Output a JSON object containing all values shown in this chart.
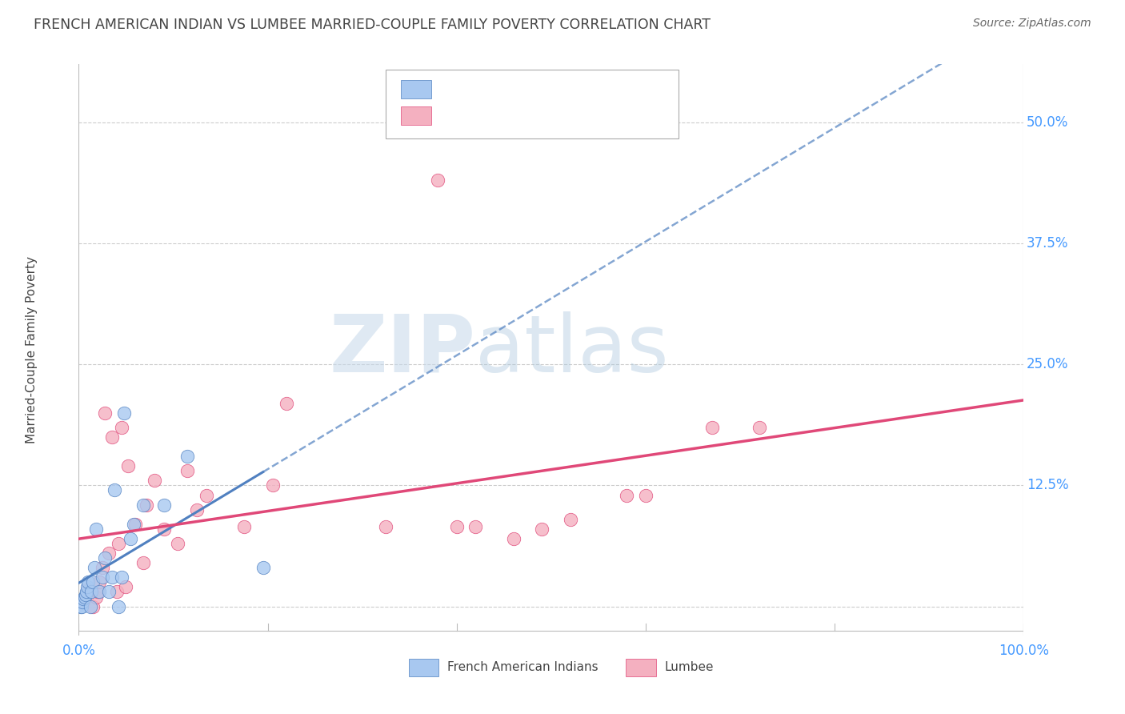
{
  "title": "FRENCH AMERICAN INDIAN VS LUMBEE MARRIED-COUPLE FAMILY POVERTY CORRELATION CHART",
  "source": "Source: ZipAtlas.com",
  "ylabel": "Married-Couple Family Poverty",
  "xlim": [
    0,
    1.0
  ],
  "ylim": [
    -0.03,
    0.56
  ],
  "grid_color": "#cccccc",
  "background_color": "#ffffff",
  "color_blue": "#a8c8f0",
  "color_pink": "#f4b0c0",
  "line_blue": "#5080c0",
  "line_pink": "#e04878",
  "label_color": "#4499ff",
  "text_color": "#444444",
  "french_points_x": [
    0.002,
    0.003,
    0.004,
    0.005,
    0.006,
    0.007,
    0.008,
    0.009,
    0.01,
    0.012,
    0.013,
    0.015,
    0.017,
    0.018,
    0.022,
    0.025,
    0.028,
    0.032,
    0.035,
    0.038,
    0.042,
    0.045,
    0.048,
    0.055,
    0.058,
    0.068,
    0.09,
    0.115,
    0.195
  ],
  "french_points_y": [
    0.0,
    0.0,
    0.005,
    0.008,
    0.01,
    0.012,
    0.015,
    0.02,
    0.025,
    0.0,
    0.015,
    0.025,
    0.04,
    0.08,
    0.015,
    0.03,
    0.05,
    0.015,
    0.03,
    0.12,
    0.0,
    0.03,
    0.2,
    0.07,
    0.085,
    0.105,
    0.105,
    0.155,
    0.04
  ],
  "lumbee_points_x": [
    0.005,
    0.008,
    0.01,
    0.015,
    0.018,
    0.02,
    0.022,
    0.025,
    0.028,
    0.032,
    0.035,
    0.04,
    0.042,
    0.045,
    0.05,
    0.052,
    0.06,
    0.068,
    0.072,
    0.08,
    0.09,
    0.105,
    0.115,
    0.125,
    0.135,
    0.175,
    0.205,
    0.22,
    0.325,
    0.38,
    0.4,
    0.42,
    0.46,
    0.49,
    0.52,
    0.58,
    0.6,
    0.67,
    0.72
  ],
  "lumbee_points_y": [
    0.005,
    0.01,
    0.018,
    0.0,
    0.01,
    0.015,
    0.025,
    0.04,
    0.2,
    0.055,
    0.175,
    0.015,
    0.065,
    0.185,
    0.02,
    0.145,
    0.085,
    0.045,
    0.105,
    0.13,
    0.08,
    0.065,
    0.14,
    0.1,
    0.115,
    0.082,
    0.125,
    0.21,
    0.082,
    0.44,
    0.082,
    0.082,
    0.07,
    0.08,
    0.09,
    0.115,
    0.115,
    0.185,
    0.185
  ]
}
